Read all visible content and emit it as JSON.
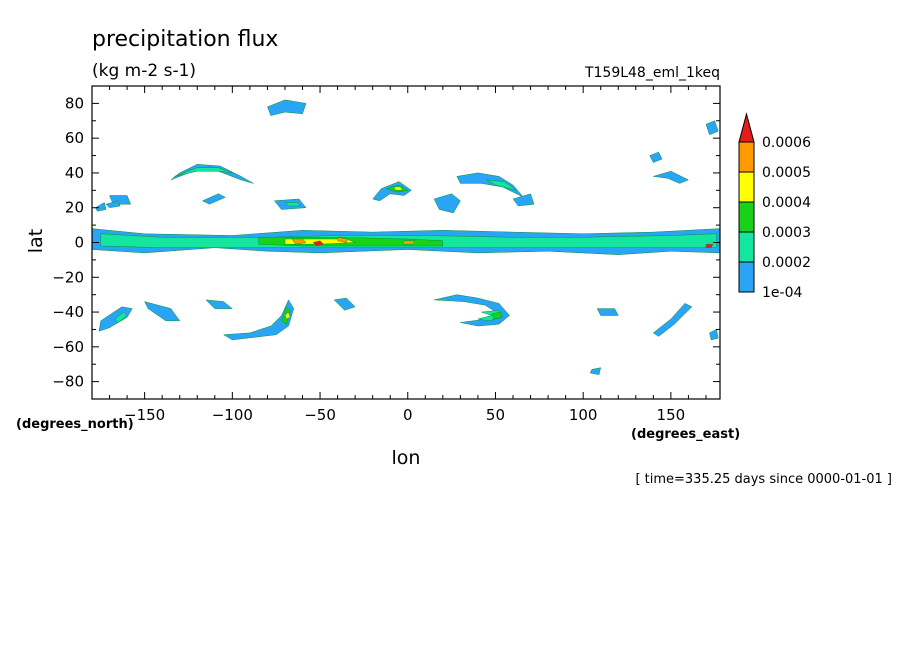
{
  "chart_data": {
    "type": "heatmap",
    "title": "precipitation flux",
    "units": "(kg m-2 s-1)",
    "run_label": "T159L48_eml_1keq",
    "xlabel": "lon",
    "ylabel": "lat",
    "x_units": "(degrees_east)",
    "y_units": "(degrees_north)",
    "xlim": [
      -180,
      178
    ],
    "ylim": [
      -90,
      90
    ],
    "x_ticks": [
      -150,
      -100,
      -50,
      0,
      50,
      100,
      150
    ],
    "y_ticks": [
      -80,
      -60,
      -40,
      -20,
      0,
      20,
      40,
      60,
      80
    ],
    "time_note": "[ time=335.25 days since 0000-01-01 ]",
    "colorbar": {
      "levels": [
        "1e-04",
        "0.0002",
        "0.0003",
        "0.0004",
        "0.0005",
        "0.0006"
      ],
      "colors": [
        "#2aa5f5",
        "#14e6a0",
        "#18d218",
        "#ffff00",
        "#ff9a00",
        "#e61c1c"
      ],
      "extend": "max"
    },
    "features": [
      {
        "desc": "equatorial band",
        "level": 1,
        "pts": [
          [
            -180,
            8
          ],
          [
            -150,
            5
          ],
          [
            -100,
            4
          ],
          [
            -60,
            7
          ],
          [
            -20,
            6
          ],
          [
            20,
            7
          ],
          [
            60,
            6
          ],
          [
            100,
            5
          ],
          [
            140,
            6
          ],
          [
            178,
            8
          ],
          [
            178,
            -6
          ],
          [
            150,
            -5
          ],
          [
            120,
            -7
          ],
          [
            80,
            -5
          ],
          [
            40,
            -6
          ],
          [
            0,
            -4
          ],
          [
            -50,
            -6
          ],
          [
            -80,
            -5
          ],
          [
            -110,
            -3
          ],
          [
            -150,
            -6
          ],
          [
            -180,
            -4
          ]
        ]
      },
      {
        "desc": "equatorial band core",
        "level": 2,
        "pts": [
          [
            -175,
            5
          ],
          [
            -140,
            3
          ],
          [
            -80,
            3
          ],
          [
            -40,
            4
          ],
          [
            10,
            4
          ],
          [
            60,
            3
          ],
          [
            100,
            3
          ],
          [
            150,
            4
          ],
          [
            176,
            5
          ],
          [
            176,
            -3
          ],
          [
            140,
            -3
          ],
          [
            100,
            -3
          ],
          [
            60,
            -3
          ],
          [
            10,
            -3
          ],
          [
            -40,
            -3
          ],
          [
            -80,
            -3
          ],
          [
            -140,
            -3
          ],
          [
            -175,
            -2
          ]
        ]
      },
      {
        "desc": "equatorial green patches",
        "level": 3,
        "pts": [
          [
            -85,
            3
          ],
          [
            -40,
            3
          ],
          [
            0,
            2
          ],
          [
            20,
            1
          ],
          [
            20,
            -2
          ],
          [
            -10,
            -2
          ],
          [
            -60,
            -2
          ],
          [
            -85,
            -1
          ]
        ]
      },
      {
        "desc": "equatorial yellow patches",
        "level": 4,
        "pts": [
          [
            -70,
            2
          ],
          [
            -55,
            2
          ],
          [
            -35,
            2
          ],
          [
            -30,
            0
          ],
          [
            -50,
            -1
          ],
          [
            -70,
            -1
          ]
        ]
      },
      {
        "desc": "storm cell",
        "level": 5,
        "pts": [
          [
            -66,
            2
          ],
          [
            -60,
            2
          ],
          [
            -58,
            0
          ],
          [
            -64,
            -1
          ]
        ]
      },
      {
        "desc": "storm cell",
        "level": 6,
        "pts": [
          [
            -54,
            0
          ],
          [
            -50,
            1
          ],
          [
            -48,
            -1
          ],
          [
            -52,
            -2
          ]
        ]
      },
      {
        "desc": "storm cell",
        "level": 5,
        "pts": [
          [
            -40,
            3
          ],
          [
            -34,
            2
          ],
          [
            -35,
            0
          ],
          [
            -40,
            1
          ]
        ]
      },
      {
        "desc": "storm cell",
        "level": 5,
        "pts": [
          [
            -2,
            1
          ],
          [
            4,
            1
          ],
          [
            3,
            -1
          ],
          [
            -3,
            -1
          ]
        ]
      },
      {
        "desc": "storm cell",
        "level": 6,
        "pts": [
          [
            170,
            -1
          ],
          [
            174,
            -1
          ],
          [
            173,
            -3
          ],
          [
            170,
            -3
          ]
        ]
      },
      {
        "desc": "NH arc -140",
        "level": 1,
        "pts": [
          [
            -135,
            36
          ],
          [
            -130,
            40
          ],
          [
            -120,
            45
          ],
          [
            -107,
            44
          ],
          [
            -95,
            38
          ],
          [
            -88,
            34
          ],
          [
            -95,
            36
          ],
          [
            -108,
            41
          ],
          [
            -120,
            42
          ],
          [
            -130,
            38
          ]
        ]
      },
      {
        "desc": "NH arc -140 core",
        "level": 2,
        "pts": [
          [
            -133,
            38
          ],
          [
            -120,
            43
          ],
          [
            -108,
            43
          ],
          [
            -100,
            40
          ],
          [
            -108,
            41
          ],
          [
            -120,
            41
          ]
        ]
      },
      {
        "desc": "NH blob -150",
        "level": 1,
        "pts": [
          [
            -170,
            27
          ],
          [
            -160,
            27
          ],
          [
            -158,
            22
          ],
          [
            -168,
            22
          ]
        ]
      },
      {
        "desc": "NH blob -175",
        "level": 1,
        "pts": [
          [
            -178,
            20
          ],
          [
            -173,
            23
          ],
          [
            -172,
            19
          ],
          [
            -177,
            18
          ]
        ]
      },
      {
        "desc": "NH blob -170",
        "level": 1,
        "pts": [
          [
            -172,
            22
          ],
          [
            -165,
            24
          ],
          [
            -164,
            21
          ],
          [
            -170,
            20
          ]
        ]
      },
      {
        "desc": "NH streak -115",
        "level": 1,
        "pts": [
          [
            -117,
            24
          ],
          [
            -108,
            28
          ],
          [
            -104,
            26
          ],
          [
            -113,
            22
          ]
        ]
      },
      {
        "desc": "NH streak -70",
        "level": 1,
        "pts": [
          [
            -76,
            24
          ],
          [
            -62,
            25
          ],
          [
            -58,
            20
          ],
          [
            -72,
            19
          ]
        ]
      },
      {
        "desc": "NH streak -70 core",
        "level": 2,
        "pts": [
          [
            -70,
            23
          ],
          [
            -63,
            23
          ],
          [
            -61,
            21
          ],
          [
            -68,
            21
          ]
        ]
      },
      {
        "desc": "NH arc -15",
        "level": 1,
        "pts": [
          [
            -20,
            25
          ],
          [
            -15,
            31
          ],
          [
            -5,
            35
          ],
          [
            2,
            30
          ],
          [
            -2,
            27
          ],
          [
            -10,
            28
          ],
          [
            -16,
            24
          ]
        ]
      },
      {
        "desc": "NH arc -15 core",
        "level": 3,
        "pts": [
          [
            -12,
            31
          ],
          [
            -5,
            33
          ],
          [
            0,
            30
          ],
          [
            -6,
            29
          ]
        ]
      },
      {
        "desc": "NH arc -15 peak",
        "level": 4,
        "pts": [
          [
            -8,
            32
          ],
          [
            -4,
            32
          ],
          [
            -3,
            30
          ],
          [
            -7,
            30
          ]
        ]
      },
      {
        "desc": "NH blob 25",
        "level": 1,
        "pts": [
          [
            15,
            25
          ],
          [
            25,
            28
          ],
          [
            30,
            24
          ],
          [
            26,
            17
          ],
          [
            18,
            19
          ]
        ]
      },
      {
        "desc": "NH arc 50",
        "level": 1,
        "pts": [
          [
            28,
            38
          ],
          [
            40,
            40
          ],
          [
            52,
            38
          ],
          [
            60,
            33
          ],
          [
            66,
            26
          ],
          [
            62,
            28
          ],
          [
            54,
            32
          ],
          [
            42,
            34
          ],
          [
            30,
            34
          ]
        ]
      },
      {
        "desc": "NH arc 50 core",
        "level": 2,
        "pts": [
          [
            45,
            36
          ],
          [
            55,
            35
          ],
          [
            62,
            30
          ],
          [
            58,
            31
          ],
          [
            50,
            33
          ]
        ]
      },
      {
        "desc": "NH blob 65",
        "level": 1,
        "pts": [
          [
            60,
            25
          ],
          [
            70,
            28
          ],
          [
            72,
            22
          ],
          [
            63,
            21
          ]
        ]
      },
      {
        "desc": "NH blob -75",
        "level": 1,
        "pts": [
          [
            -80,
            78
          ],
          [
            -70,
            82
          ],
          [
            -58,
            80
          ],
          [
            -60,
            74
          ],
          [
            -70,
            75
          ],
          [
            -78,
            73
          ]
        ]
      },
      {
        "desc": "NH streak 150",
        "level": 1,
        "pts": [
          [
            140,
            38
          ],
          [
            150,
            41
          ],
          [
            160,
            36
          ],
          [
            155,
            34
          ],
          [
            148,
            37
          ]
        ]
      },
      {
        "desc": "NH blob 175",
        "level": 1,
        "pts": [
          [
            170,
            68
          ],
          [
            175,
            70
          ],
          [
            177,
            64
          ],
          [
            172,
            62
          ]
        ]
      },
      {
        "desc": "NH blob 140",
        "level": 1,
        "pts": [
          [
            138,
            50
          ],
          [
            143,
            52
          ],
          [
            145,
            48
          ],
          [
            140,
            46
          ]
        ]
      },
      {
        "desc": "SH arc -140",
        "level": 1,
        "pts": [
          [
            -175,
            -45
          ],
          [
            -163,
            -37
          ],
          [
            -157,
            -38
          ],
          [
            -160,
            -43
          ],
          [
            -170,
            -49
          ],
          [
            -176,
            -51
          ]
        ]
      },
      {
        "desc": "SH arc -140 core",
        "level": 2,
        "pts": [
          [
            -167,
            -44
          ],
          [
            -162,
            -40
          ],
          [
            -160,
            -42
          ],
          [
            -165,
            -46
          ]
        ]
      },
      {
        "desc": "SH streak -140",
        "level": 1,
        "pts": [
          [
            -150,
            -34
          ],
          [
            -135,
            -38
          ],
          [
            -130,
            -45
          ],
          [
            -138,
            -45
          ],
          [
            -148,
            -38
          ]
        ]
      },
      {
        "desc": "SH blob -110",
        "level": 1,
        "pts": [
          [
            -115,
            -33
          ],
          [
            -105,
            -34
          ],
          [
            -100,
            -38
          ],
          [
            -110,
            -38
          ]
        ]
      },
      {
        "desc": "SH arc -80",
        "level": 1,
        "pts": [
          [
            -90,
            -52
          ],
          [
            -78,
            -48
          ],
          [
            -72,
            -42
          ],
          [
            -68,
            -33
          ],
          [
            -65,
            -38
          ],
          [
            -68,
            -48
          ],
          [
            -75,
            -53
          ],
          [
            -100,
            -56
          ],
          [
            -105,
            -53
          ]
        ]
      },
      {
        "desc": "SH arc -80 core",
        "level": 3,
        "pts": [
          [
            -72,
            -45
          ],
          [
            -69,
            -37
          ],
          [
            -67,
            -39
          ],
          [
            -69,
            -47
          ]
        ]
      },
      {
        "desc": "SH arc -80 peak",
        "level": 4,
        "pts": [
          [
            -70,
            -42
          ],
          [
            -68,
            -40
          ],
          [
            -67,
            -43
          ],
          [
            -69,
            -44
          ]
        ]
      },
      {
        "desc": "SH blob -35",
        "level": 1,
        "pts": [
          [
            -42,
            -33
          ],
          [
            -35,
            -32
          ],
          [
            -30,
            -37
          ],
          [
            -36,
            -39
          ]
        ]
      },
      {
        "desc": "SH arc 40",
        "level": 1,
        "pts": [
          [
            15,
            -33
          ],
          [
            28,
            -30
          ],
          [
            40,
            -32
          ],
          [
            52,
            -35
          ],
          [
            58,
            -42
          ],
          [
            52,
            -47
          ],
          [
            40,
            -48
          ],
          [
            30,
            -46
          ],
          [
            45,
            -44
          ],
          [
            52,
            -41
          ],
          [
            44,
            -36
          ],
          [
            32,
            -34
          ]
        ]
      },
      {
        "desc": "SH arc 40 core",
        "level": 2,
        "pts": [
          [
            42,
            -40
          ],
          [
            52,
            -39
          ],
          [
            54,
            -43
          ],
          [
            46,
            -45
          ],
          [
            40,
            -44
          ],
          [
            48,
            -42
          ]
        ]
      },
      {
        "desc": "SH arc 40 peak",
        "level": 3,
        "pts": [
          [
            48,
            -41
          ],
          [
            53,
            -40
          ],
          [
            54,
            -43
          ],
          [
            49,
            -44
          ]
        ]
      },
      {
        "desc": "SH blob 115",
        "level": 1,
        "pts": [
          [
            108,
            -38
          ],
          [
            118,
            -38
          ],
          [
            120,
            -42
          ],
          [
            110,
            -42
          ]
        ]
      },
      {
        "desc": "SH streak 150",
        "level": 1,
        "pts": [
          [
            140,
            -52
          ],
          [
            150,
            -44
          ],
          [
            158,
            -35
          ],
          [
            162,
            -37
          ],
          [
            152,
            -47
          ],
          [
            143,
            -54
          ]
        ]
      },
      {
        "desc": "SH blob 175",
        "level": 1,
        "pts": [
          [
            172,
            -52
          ],
          [
            176,
            -50
          ],
          [
            177,
            -55
          ],
          [
            173,
            -56
          ]
        ]
      },
      {
        "desc": "SH blob 110",
        "level": 1,
        "pts": [
          [
            105,
            -73
          ],
          [
            110,
            -72
          ],
          [
            109,
            -76
          ],
          [
            104,
            -75
          ]
        ]
      }
    ]
  }
}
